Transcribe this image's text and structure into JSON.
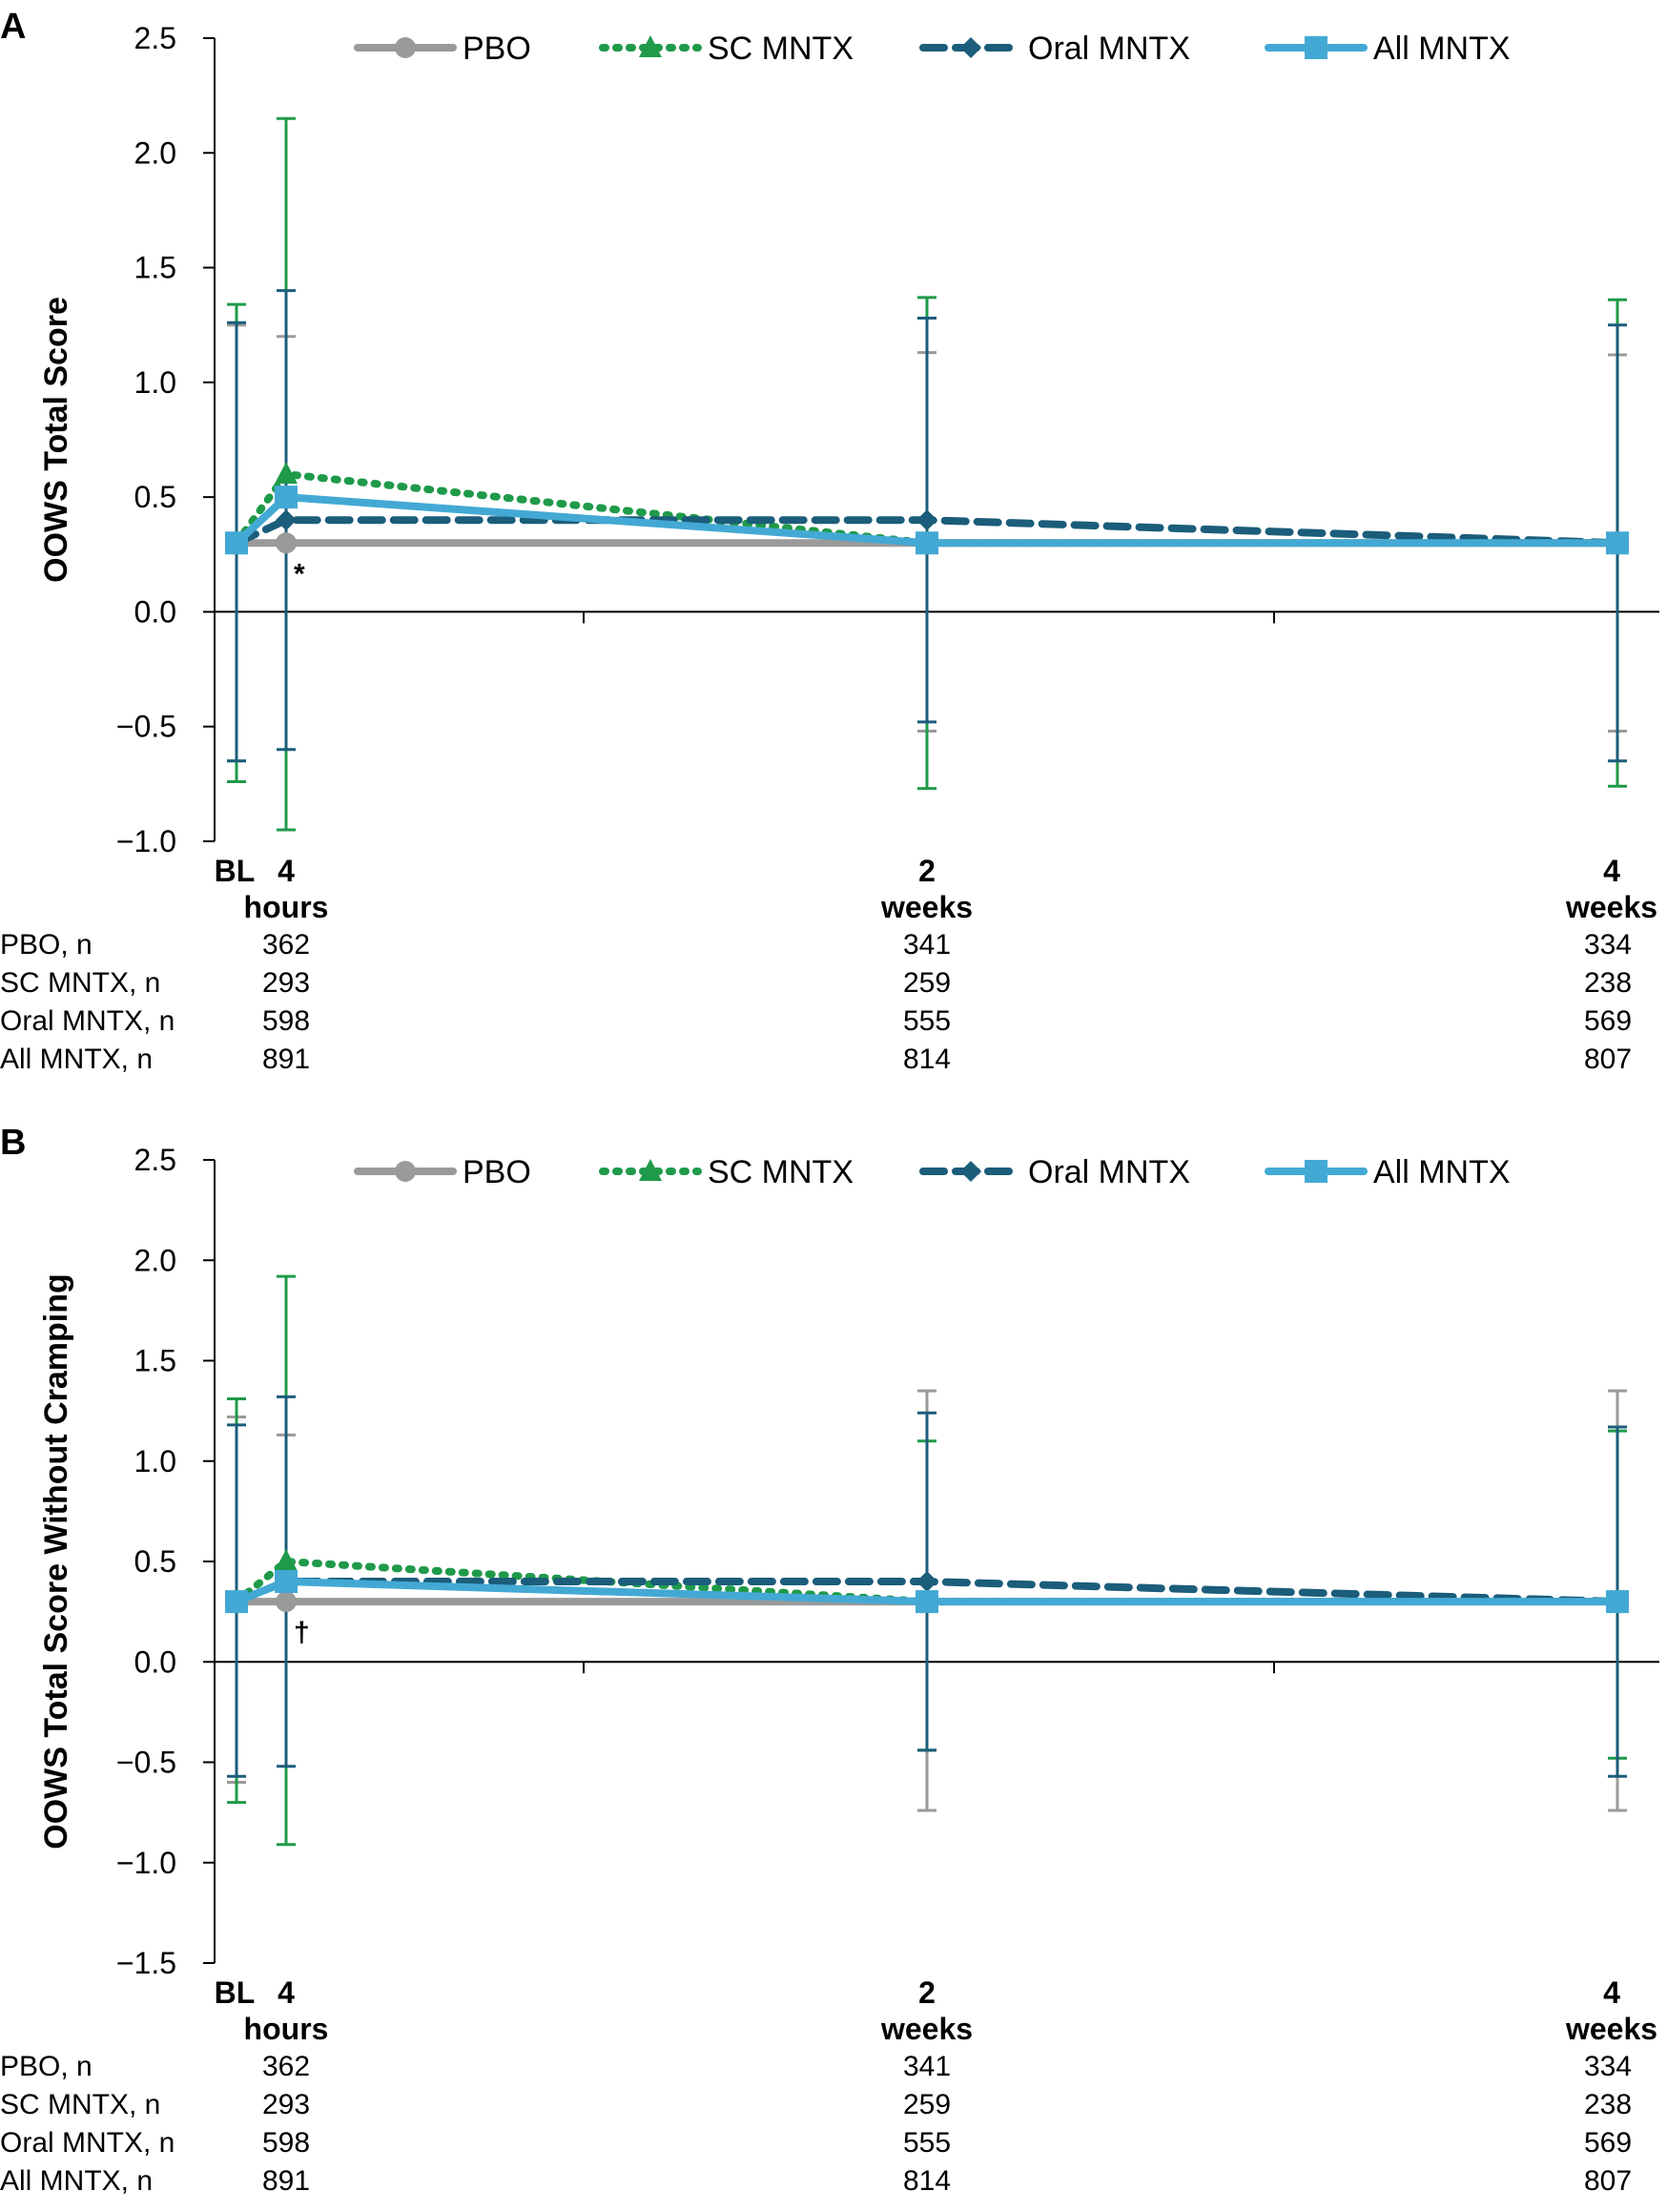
{
  "colors": {
    "PBO": "#9a9a9a",
    "SC MNTX": "#1f9a4a",
    "Oral MNTX": "#1b5d7a",
    "All MNTX": "#43a9d4"
  },
  "chart_data": [
    {
      "type": "line",
      "panel": "A",
      "ylabel": "OOWS Total Score",
      "ylim": [
        -1.0,
        2.5
      ],
      "yticks": [
        "2.5",
        "2.0",
        "1.5",
        "1.0",
        "0.5",
        "0.0",
        "−0.5",
        "−1.0"
      ],
      "ytick_values": [
        2.5,
        2.0,
        1.5,
        1.0,
        0.5,
        0.0,
        -0.5,
        -1.0
      ],
      "x_values": [
        0,
        4,
        336,
        672
      ],
      "x_label_items": [
        {
          "x": 0,
          "line1": "BL",
          "line2": ""
        },
        {
          "x": 4,
          "line1": "4",
          "line2": "hours"
        },
        {
          "x": 336,
          "line1": "2",
          "line2": "weeks"
        },
        {
          "x": 672,
          "line1": "4",
          "line2": "weeks"
        }
      ],
      "legend": [
        "PBO",
        "SC MNTX",
        "Oral MNTX",
        "All MNTX"
      ],
      "series": [
        {
          "name": "PBO",
          "values": [
            0.3,
            0.3,
            0.3,
            0.3
          ],
          "err_low": [
            -0.65,
            null,
            -0.52,
            -0.52
          ],
          "err_high": [
            1.25,
            1.2,
            1.13,
            1.12
          ]
        },
        {
          "name": "SC MNTX",
          "values": [
            0.3,
            0.6,
            0.3,
            0.3
          ],
          "err_low": [
            -0.74,
            -0.95,
            -0.77,
            -0.76
          ],
          "err_high": [
            1.34,
            2.15,
            1.37,
            1.36
          ]
        },
        {
          "name": "Oral MNTX",
          "values": [
            0.3,
            0.4,
            0.4,
            0.3
          ],
          "err_low": [
            -0.65,
            -0.6,
            -0.48,
            -0.65
          ],
          "err_high": [
            1.26,
            1.4,
            1.28,
            1.25
          ]
        },
        {
          "name": "All MNTX",
          "values": [
            0.3,
            0.5,
            0.3,
            0.3
          ],
          "err_low": [
            null,
            null,
            null,
            null
          ],
          "err_high": [
            null,
            null,
            null,
            null
          ]
        }
      ],
      "annotation": {
        "text": "*",
        "x": 4,
        "y": 0.3
      },
      "n_table": [
        {
          "label": "PBO, n",
          "values": [
            "362",
            "341",
            "334"
          ]
        },
        {
          "label": "SC MNTX, n",
          "values": [
            "293",
            "259",
            "238"
          ]
        },
        {
          "label": "Oral MNTX, n",
          "values": [
            "598",
            "555",
            "569"
          ]
        },
        {
          "label": "All MNTX, n",
          "values": [
            "891",
            "814",
            "807"
          ]
        }
      ]
    },
    {
      "type": "line",
      "panel": "B",
      "ylabel": "OOWS Total Score Without Cramping",
      "ylim": [
        -1.5,
        2.5
      ],
      "yticks": [
        "2.5",
        "2.0",
        "1.5",
        "1.0",
        "0.5",
        "0.0",
        "−0.5",
        "−1.0",
        "−1.5"
      ],
      "ytick_values": [
        2.5,
        2.0,
        1.5,
        1.0,
        0.5,
        0.0,
        -0.5,
        -1.0,
        -1.5
      ],
      "x_values": [
        0,
        4,
        336,
        672
      ],
      "x_label_items": [
        {
          "x": 0,
          "line1": "BL",
          "line2": ""
        },
        {
          "x": 4,
          "line1": "4",
          "line2": "hours"
        },
        {
          "x": 336,
          "line1": "2",
          "line2": "weeks"
        },
        {
          "x": 672,
          "line1": "4",
          "line2": "weeks"
        }
      ],
      "legend": [
        "PBO",
        "SC MNTX",
        "Oral MNTX",
        "All MNTX"
      ],
      "series": [
        {
          "name": "PBO",
          "values": [
            0.3,
            0.3,
            0.3,
            0.3
          ],
          "err_low": [
            -0.6,
            null,
            -0.74,
            -0.74
          ],
          "err_high": [
            1.22,
            1.13,
            1.35,
            1.35
          ]
        },
        {
          "name": "SC MNTX",
          "values": [
            0.3,
            0.5,
            0.3,
            0.3
          ],
          "err_low": [
            -0.7,
            -0.91,
            -0.44,
            -0.48
          ],
          "err_high": [
            1.31,
            1.92,
            1.1,
            1.15
          ]
        },
        {
          "name": "Oral MNTX",
          "values": [
            0.3,
            0.4,
            0.4,
            0.3
          ],
          "err_low": [
            -0.57,
            -0.52,
            -0.44,
            -0.57
          ],
          "err_high": [
            1.18,
            1.32,
            1.24,
            1.17
          ]
        },
        {
          "name": "All MNTX",
          "values": [
            0.3,
            0.4,
            0.3,
            0.3
          ],
          "err_low": [
            null,
            null,
            null,
            null
          ],
          "err_high": [
            null,
            null,
            null,
            null
          ]
        }
      ],
      "annotation": {
        "text": "†",
        "x": 4,
        "y": 0.3
      },
      "n_table": [
        {
          "label": "PBO, n",
          "values": [
            "362",
            "341",
            "334"
          ]
        },
        {
          "label": "SC MNTX, n",
          "values": [
            "293",
            "259",
            "238"
          ]
        },
        {
          "label": "Oral MNTX, n",
          "values": [
            "598",
            "555",
            "569"
          ]
        },
        {
          "label": "All MNTX, n",
          "values": [
            "891",
            "814",
            "807"
          ]
        }
      ]
    }
  ]
}
